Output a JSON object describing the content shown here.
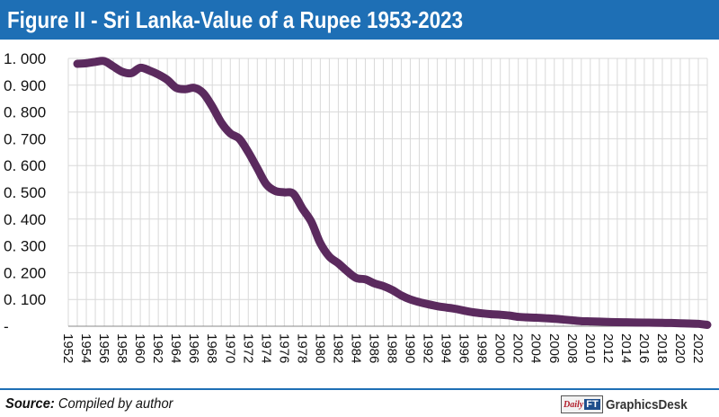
{
  "header": {
    "title": "Figure II - Sri Lanka-Value of a Rupee 1953-2023"
  },
  "footer": {
    "source_label": "Source:",
    "source_text": " Compiled by author",
    "logo_daily": "Daily",
    "logo_ft": "FT",
    "logo_desk": "GraphicsDesk"
  },
  "colors": {
    "title_bar": "#1e6fb5",
    "line": "#5b2a5e",
    "grid": "#d9d9d9"
  },
  "chart_data": {
    "type": "line",
    "title": "Figure II - Sri Lanka-Value of a Rupee 1953-2023",
    "xlabel": "",
    "ylabel": "",
    "ylim": [
      0,
      1
    ],
    "y_ticks": [
      0,
      0.1,
      0.2,
      0.3,
      0.4,
      0.5,
      0.6,
      0.7,
      0.8,
      0.9,
      1.0
    ],
    "y_tick_labels": [
      "-",
      "0. 100",
      "0. 200",
      "0. 300",
      "0. 400",
      "0. 500",
      "0. 600",
      "0. 700",
      "0. 800",
      "0. 900",
      "1. 000"
    ],
    "x_tick_labels": [
      "1952",
      "1954",
      "1956",
      "1958",
      "1960",
      "1962",
      "1964",
      "1966",
      "1968",
      "1970",
      "1972",
      "1974",
      "1976",
      "1978",
      "1980",
      "1982",
      "1984",
      "1986",
      "1988",
      "1990",
      "1992",
      "1994",
      "1996",
      "1998",
      "2000",
      "2002",
      "2004",
      "2006",
      "2008",
      "2010",
      "2012",
      "2014",
      "2016",
      "2018",
      "2020",
      "2022"
    ],
    "grid": true,
    "legend": "none",
    "x": [
      1953,
      1954,
      1955,
      1956,
      1957,
      1958,
      1959,
      1960,
      1961,
      1962,
      1963,
      1964,
      1965,
      1966,
      1967,
      1968,
      1969,
      1970,
      1971,
      1972,
      1973,
      1974,
      1975,
      1976,
      1977,
      1978,
      1979,
      1980,
      1981,
      1982,
      1983,
      1984,
      1985,
      1986,
      1987,
      1988,
      1989,
      1990,
      1991,
      1992,
      1993,
      1994,
      1995,
      1996,
      1997,
      1998,
      1999,
      2000,
      2001,
      2002,
      2003,
      2004,
      2005,
      2006,
      2007,
      2008,
      2009,
      2010,
      2011,
      2012,
      2013,
      2014,
      2015,
      2016,
      2017,
      2018,
      2019,
      2020,
      2021,
      2022,
      2023
    ],
    "values": [
      0.98,
      0.982,
      0.987,
      0.99,
      0.97,
      0.95,
      0.945,
      0.965,
      0.955,
      0.94,
      0.92,
      0.89,
      0.885,
      0.89,
      0.87,
      0.82,
      0.76,
      0.72,
      0.7,
      0.65,
      0.59,
      0.53,
      0.505,
      0.5,
      0.495,
      0.44,
      0.39,
      0.31,
      0.26,
      0.235,
      0.205,
      0.18,
      0.175,
      0.16,
      0.15,
      0.135,
      0.115,
      0.1,
      0.09,
      0.082,
      0.075,
      0.07,
      0.065,
      0.058,
      0.052,
      0.048,
      0.045,
      0.043,
      0.04,
      0.035,
      0.033,
      0.032,
      0.03,
      0.028,
      0.025,
      0.022,
      0.019,
      0.018,
      0.017,
      0.016,
      0.015,
      0.0145,
      0.014,
      0.0135,
      0.013,
      0.0125,
      0.012,
      0.011,
      0.01,
      0.009,
      0.005
    ]
  }
}
